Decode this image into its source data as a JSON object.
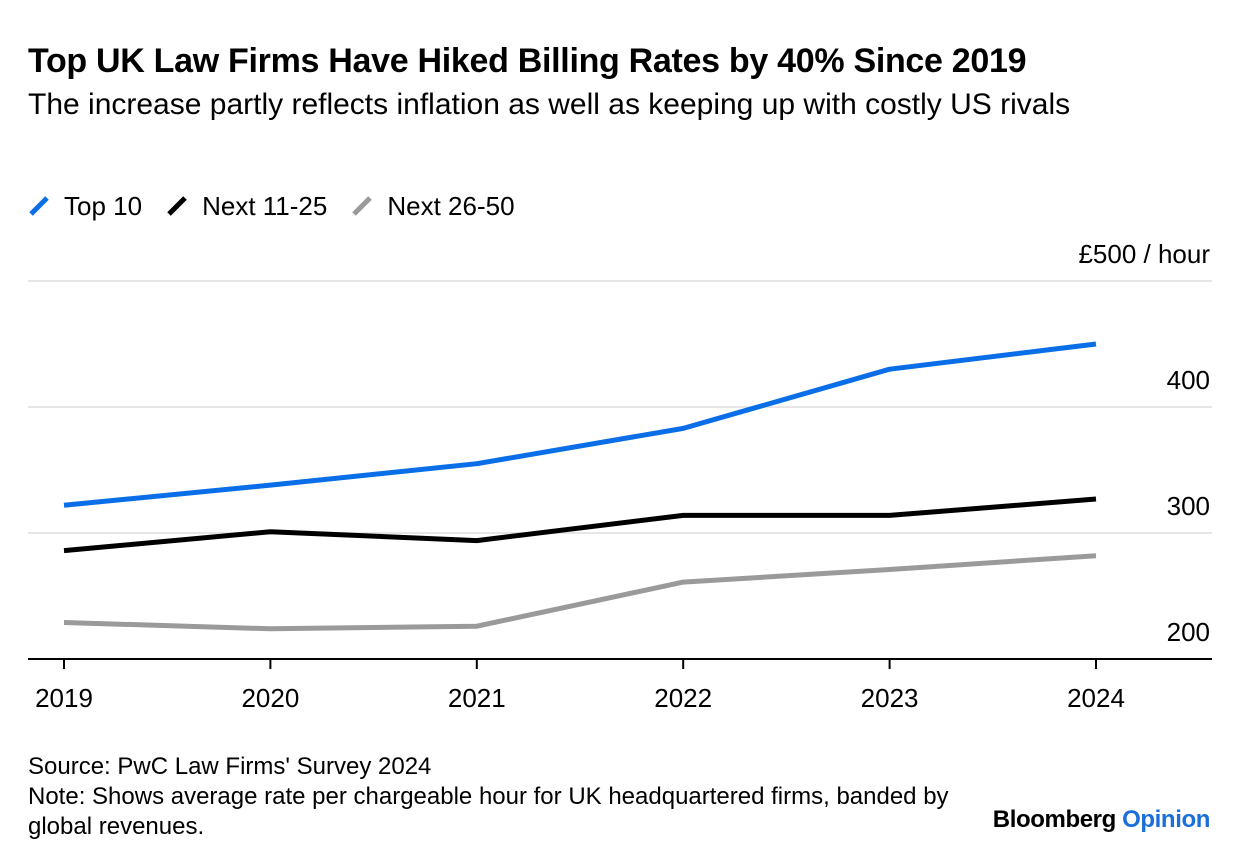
{
  "title": "Top UK Law Firms Have Hiked Billing Rates by 40% Since 2019",
  "subtitle": "The increase partly reflects inflation as well as keeping up with costly US rivals",
  "footer": {
    "source": "Source: PwC Law Firms' Survey 2024",
    "note": "Note: Shows average rate per chargeable hour for UK headquartered firms, banded by global revenues."
  },
  "brand": {
    "part1": "Bloomberg",
    "part2": "Opinion"
  },
  "colors": {
    "top10": "#0a6ee8",
    "next11_25": "#000000",
    "next26_50": "#9a9a9a",
    "grid": "#e6e6e6",
    "brand_accent": "#1a6fd8"
  },
  "chart_data": {
    "type": "line",
    "title": "Top UK Law Firms Have Hiked Billing Rates by 40% Since 2019",
    "subtitle": "The increase partly reflects inflation as well as keeping up with costly US rivals",
    "x": [
      "2019",
      "2020",
      "2021",
      "2022",
      "2023",
      "2024"
    ],
    "series": [
      {
        "name": "Top 10",
        "color": "#0a6ee8",
        "values": [
          322,
          338,
          355,
          383,
          430,
          450
        ]
      },
      {
        "name": "Next 11-25",
        "color": "#000000",
        "values": [
          286,
          301,
          294,
          314,
          314,
          327
        ]
      },
      {
        "name": "Next 26-50",
        "color": "#9a9a9a",
        "values": [
          229,
          224,
          226,
          261,
          271,
          282
        ]
      }
    ],
    "ylim": [
      200,
      500
    ],
    "yticks": [
      200,
      300,
      400,
      500
    ],
    "ytick_labels": [
      "200",
      "300",
      "400",
      "£500 / hour"
    ],
    "grid": true,
    "legend": "top-left",
    "y_axis_side": "right"
  }
}
